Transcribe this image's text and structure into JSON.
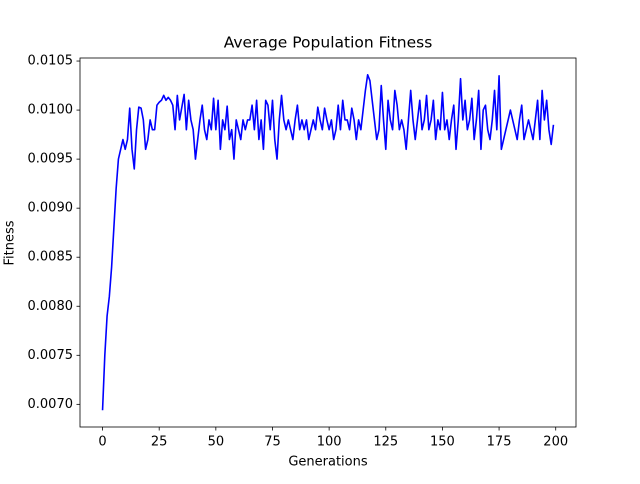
{
  "chart_data": {
    "type": "line",
    "title": "Average Population Fitness",
    "x_label": "Generations",
    "y_label": "Fitness",
    "color": "#0000ff",
    "x": [
      0,
      1,
      2,
      3,
      4,
      5,
      6,
      7,
      8,
      9,
      10,
      11,
      12,
      13,
      14,
      15,
      16,
      17,
      18,
      19,
      20,
      21,
      22,
      23,
      24,
      25,
      26,
      27,
      28,
      29,
      30,
      31,
      32,
      33,
      34,
      35,
      36,
      37,
      38,
      39,
      40,
      41,
      42,
      43,
      44,
      45,
      46,
      47,
      48,
      49,
      50,
      51,
      52,
      53,
      54,
      55,
      56,
      57,
      58,
      59,
      60,
      61,
      62,
      63,
      64,
      65,
      66,
      67,
      68,
      69,
      70,
      71,
      72,
      73,
      74,
      75,
      76,
      77,
      78,
      79,
      80,
      81,
      82,
      83,
      84,
      85,
      86,
      87,
      88,
      89,
      90,
      91,
      92,
      93,
      94,
      95,
      96,
      97,
      98,
      99,
      100,
      101,
      102,
      103,
      104,
      105,
      106,
      107,
      108,
      109,
      110,
      111,
      112,
      113,
      114,
      115,
      116,
      117,
      118,
      119,
      120,
      121,
      122,
      123,
      124,
      125,
      126,
      127,
      128,
      129,
      130,
      131,
      132,
      133,
      134,
      135,
      136,
      137,
      138,
      139,
      140,
      141,
      142,
      143,
      144,
      145,
      146,
      147,
      148,
      149,
      150,
      151,
      152,
      153,
      154,
      155,
      156,
      157,
      158,
      159,
      160,
      161,
      162,
      163,
      164,
      165,
      166,
      167,
      168,
      169,
      170,
      171,
      172,
      173,
      174,
      175,
      176,
      177,
      178,
      179,
      180,
      181,
      182,
      183,
      184,
      185,
      186,
      187,
      188,
      189,
      190,
      191,
      192,
      193,
      194,
      195,
      196,
      197,
      198,
      199
    ],
    "values": [
      0.00694,
      0.0075,
      0.0079,
      0.0081,
      0.0084,
      0.0088,
      0.0092,
      0.0095,
      0.0096,
      0.0097,
      0.0096,
      0.0097,
      0.01002,
      0.0096,
      0.0094,
      0.0098,
      0.01003,
      0.01002,
      0.0099,
      0.0096,
      0.0097,
      0.0099,
      0.0098,
      0.0098,
      0.01005,
      0.01008,
      0.0101,
      0.01015,
      0.0101,
      0.01013,
      0.0101,
      0.01005,
      0.0098,
      0.01015,
      0.0099,
      0.01003,
      0.01016,
      0.0098,
      0.0101,
      0.0099,
      0.0098,
      0.0095,
      0.0097,
      0.0099,
      0.01005,
      0.0098,
      0.0097,
      0.0099,
      0.0098,
      0.01012,
      0.0098,
      0.0101,
      0.0096,
      0.0099,
      0.0098,
      0.01004,
      0.0097,
      0.0098,
      0.0095,
      0.0099,
      0.0098,
      0.0097,
      0.0099,
      0.0098,
      0.0099,
      0.0099,
      0.01005,
      0.0098,
      0.0101,
      0.0097,
      0.0099,
      0.0096,
      0.0101,
      0.01005,
      0.0098,
      0.0101,
      0.0097,
      0.0095,
      0.0099,
      0.01015,
      0.0099,
      0.0098,
      0.0099,
      0.0098,
      0.0097,
      0.0099,
      0.01005,
      0.0098,
      0.0099,
      0.0098,
      0.0099,
      0.0097,
      0.0098,
      0.0099,
      0.0098,
      0.01003,
      0.0099,
      0.0098,
      0.01002,
      0.0099,
      0.0098,
      0.0099,
      0.0097,
      0.0098,
      0.01005,
      0.0098,
      0.0101,
      0.0099,
      0.0099,
      0.0098,
      0.01002,
      0.0099,
      0.0097,
      0.0099,
      0.0098,
      0.01,
      0.0102,
      0.01036,
      0.0103,
      0.0101,
      0.0099,
      0.0097,
      0.0098,
      0.01025,
      0.0099,
      0.0096,
      0.0101,
      0.0099,
      0.0098,
      0.0102,
      0.01005,
      0.0098,
      0.0099,
      0.0098,
      0.0096,
      0.0099,
      0.0102,
      0.0099,
      0.0097,
      0.0099,
      0.0101,
      0.0098,
      0.0099,
      0.01015,
      0.0098,
      0.0099,
      0.0101,
      0.0097,
      0.0099,
      0.0098,
      0.01018,
      0.0098,
      0.0099,
      0.0097,
      0.0099,
      0.01005,
      0.0096,
      0.0099,
      0.01032,
      0.0099,
      0.0101,
      0.0098,
      0.0099,
      0.01012,
      0.0097,
      0.0099,
      0.0102,
      0.0096,
      0.01,
      0.01005,
      0.0098,
      0.0097,
      0.0099,
      0.0102,
      0.0098,
      0.01035,
      0.0096,
      0.0097,
      0.0098,
      0.0099,
      0.01,
      0.0099,
      0.0098,
      0.0097,
      0.0099,
      0.01005,
      0.0097,
      0.0098,
      0.0099,
      0.0098,
      0.0097,
      0.0099,
      0.0101,
      0.0097,
      0.0102,
      0.0099,
      0.0101,
      0.0098,
      0.00965,
      0.00985
    ],
    "xlim": [
      -9.95,
      208.95
    ],
    "xticks": [
      0,
      25,
      50,
      75,
      100,
      125,
      150,
      175,
      200
    ],
    "ylim": [
      0.006769,
      0.010531
    ],
    "yticks": [
      {
        "value": 0.007,
        "label": "0.0070"
      },
      {
        "value": 0.0075,
        "label": "0.0075"
      },
      {
        "value": 0.008,
        "label": "0.0080"
      },
      {
        "value": 0.0085,
        "label": "0.0085"
      },
      {
        "value": 0.009,
        "label": "0.0090"
      },
      {
        "value": 0.0095,
        "label": "0.0095"
      },
      {
        "value": 0.01,
        "label": "0.0100"
      },
      {
        "value": 0.0105,
        "label": "0.0105"
      }
    ]
  }
}
